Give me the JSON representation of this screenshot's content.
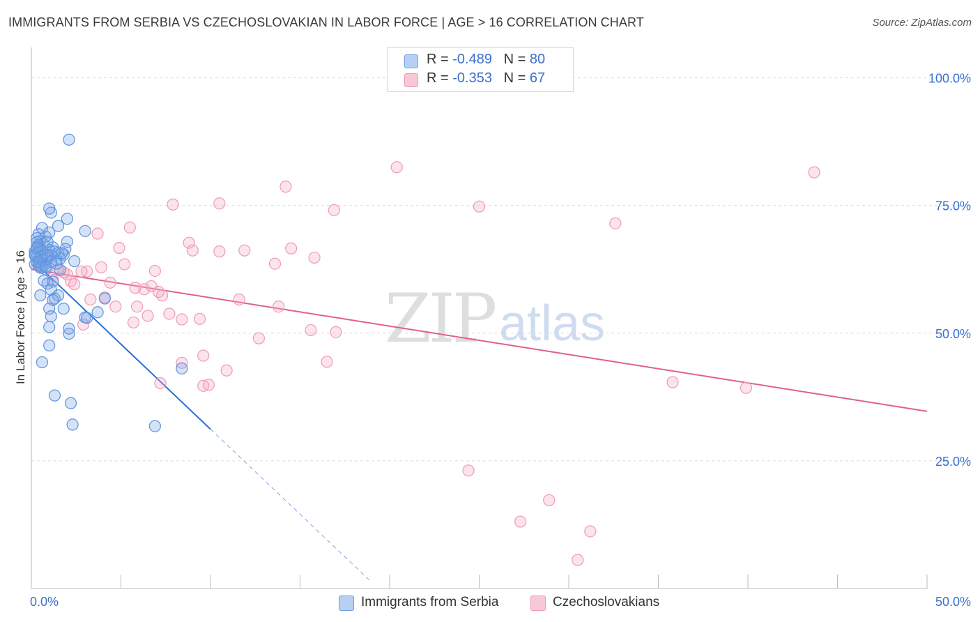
{
  "title": "IMMIGRANTS FROM SERBIA VS CZECHOSLOVAKIAN IN LABOR FORCE | AGE > 16 CORRELATION CHART",
  "source": "Source: ZipAtlas.com",
  "watermark": {
    "zip": "ZIP",
    "atlas": "atlas"
  },
  "legend": {
    "rows": [
      {
        "r_label": "R = ",
        "r_value": "-0.489",
        "n_label": "N = ",
        "n_value": "80"
      },
      {
        "r_label": "R = ",
        "r_value": "-0.353",
        "n_label": "N = ",
        "n_value": "67"
      }
    ]
  },
  "chart_data": {
    "type": "scatter",
    "title": "IMMIGRANTS FROM SERBIA VS CZECHOSLOVAKIAN IN LABOR FORCE | AGE > 16 CORRELATION CHART",
    "xlabel": "",
    "ylabel": "In Labor Force | Age > 16",
    "xlim": [
      0,
      50
    ],
    "ylim": [
      0,
      105
    ],
    "x_tick_labels": [
      "0.0%",
      "50.0%"
    ],
    "y_ticks": [
      25,
      50,
      75,
      100
    ],
    "y_tick_labels": [
      "25.0%",
      "50.0%",
      "75.0%",
      "100.0%"
    ],
    "grid": true,
    "legend_position": "top-center",
    "colors": {
      "serbia": "#5b93e0",
      "serbia_line": "#2a6fd0",
      "czech": "#f08aaa",
      "czech_line": "#e0608c",
      "tick_text": "#3a6fd0"
    },
    "series": [
      {
        "name": "Immigrants from Serbia",
        "color": "#5b93e0",
        "trend": {
          "x0": 0,
          "y0": 64.5,
          "x1": 10,
          "y1": 31.2,
          "dashed_to_x": 18.9
        },
        "points": [
          [
            0.2,
            65.5
          ],
          [
            0.3,
            66.5
          ],
          [
            0.4,
            67.2
          ],
          [
            0.3,
            64.8
          ],
          [
            0.5,
            63.8
          ],
          [
            0.6,
            65.8
          ],
          [
            0.2,
            63.5
          ],
          [
            0.8,
            64.2
          ],
          [
            0.4,
            66.9
          ],
          [
            0.7,
            67.4
          ],
          [
            0.5,
            68.1
          ],
          [
            1.0,
            66.3
          ],
          [
            0.9,
            64.9
          ],
          [
            0.6,
            62.9
          ],
          [
            1.1,
            65.3
          ],
          [
            0.3,
            68.6
          ],
          [
            0.8,
            68.9
          ],
          [
            1.4,
            64.3
          ],
          [
            1.2,
            66.8
          ],
          [
            1.5,
            65.7
          ],
          [
            0.4,
            69.4
          ],
          [
            0.6,
            70.6
          ],
          [
            1.0,
            69.7
          ],
          [
            1.1,
            73.6
          ],
          [
            1.0,
            74.4
          ],
          [
            1.5,
            71.0
          ],
          [
            2.0,
            72.4
          ],
          [
            2.0,
            67.9
          ],
          [
            1.9,
            66.5
          ],
          [
            1.8,
            65.4
          ],
          [
            2.4,
            64.1
          ],
          [
            1.6,
            64.6
          ],
          [
            0.3,
            64.0
          ],
          [
            0.5,
            65.0
          ],
          [
            0.7,
            63.3
          ],
          [
            0.2,
            66.0
          ],
          [
            0.9,
            67.9
          ],
          [
            0.5,
            66.3
          ],
          [
            0.3,
            67.8
          ],
          [
            1.3,
            66.0
          ],
          [
            1.2,
            60.1
          ],
          [
            0.9,
            59.7
          ],
          [
            1.1,
            58.5
          ],
          [
            1.3,
            56.8
          ],
          [
            1.5,
            57.4
          ],
          [
            1.2,
            56.5
          ],
          [
            1.8,
            54.8
          ],
          [
            0.5,
            57.4
          ],
          [
            1.0,
            54.8
          ],
          [
            1.1,
            53.3
          ],
          [
            1.0,
            51.2
          ],
          [
            2.1,
            50.9
          ],
          [
            2.1,
            49.9
          ],
          [
            1.0,
            47.6
          ],
          [
            0.6,
            44.3
          ],
          [
            1.3,
            37.8
          ],
          [
            2.2,
            36.3
          ],
          [
            2.3,
            32.1
          ],
          [
            3.0,
            53.1
          ],
          [
            3.1,
            53.0
          ],
          [
            3.7,
            54.1
          ],
          [
            4.1,
            56.8
          ],
          [
            3.0,
            70.0
          ],
          [
            0.8,
            62.5
          ],
          [
            1.6,
            62.4
          ],
          [
            0.7,
            60.3
          ],
          [
            2.1,
            87.9
          ],
          [
            8.4,
            43.1
          ],
          [
            6.9,
            31.8
          ],
          [
            0.4,
            63.2
          ],
          [
            0.6,
            64.4
          ],
          [
            1.4,
            63.6
          ],
          [
            0.2,
            65.2
          ],
          [
            0.4,
            63.9
          ],
          [
            0.3,
            66.8
          ],
          [
            0.9,
            65.3
          ],
          [
            1.7,
            65.7
          ],
          [
            0.5,
            62.8
          ],
          [
            1.1,
            64.0
          ],
          [
            0.8,
            63.0
          ]
        ]
      },
      {
        "name": "Czechoslovakians",
        "color": "#f08aaa",
        "trend": {
          "x0": 0,
          "y0": 62.5,
          "x1": 50,
          "y1": 34.7
        },
        "points": [
          [
            0.6,
            62.8
          ],
          [
            0.9,
            64.5
          ],
          [
            1.5,
            62.4
          ],
          [
            2.0,
            61.5
          ],
          [
            2.2,
            60.2
          ],
          [
            2.4,
            59.6
          ],
          [
            3.1,
            62.1
          ],
          [
            3.3,
            56.6
          ],
          [
            2.9,
            51.7
          ],
          [
            3.7,
            69.5
          ],
          [
            3.9,
            62.9
          ],
          [
            4.4,
            59.9
          ],
          [
            4.7,
            55.2
          ],
          [
            4.9,
            66.7
          ],
          [
            5.2,
            63.5
          ],
          [
            5.5,
            70.7
          ],
          [
            5.7,
            52.1
          ],
          [
            5.9,
            55.2
          ],
          [
            6.3,
            58.6
          ],
          [
            6.5,
            53.4
          ],
          [
            6.7,
            59.2
          ],
          [
            6.9,
            62.2
          ],
          [
            7.1,
            58.1
          ],
          [
            7.3,
            57.4
          ],
          [
            7.7,
            53.8
          ],
          [
            7.9,
            75.2
          ],
          [
            8.4,
            52.7
          ],
          [
            8.4,
            44.2
          ],
          [
            8.8,
            67.7
          ],
          [
            9.0,
            66.2
          ],
          [
            9.4,
            52.8
          ],
          [
            9.6,
            45.6
          ],
          [
            9.6,
            39.7
          ],
          [
            9.9,
            39.9
          ],
          [
            10.5,
            75.4
          ],
          [
            10.5,
            66.0
          ],
          [
            10.9,
            42.7
          ],
          [
            11.6,
            56.6
          ],
          [
            11.9,
            66.2
          ],
          [
            12.7,
            49.0
          ],
          [
            13.6,
            63.6
          ],
          [
            13.8,
            55.2
          ],
          [
            14.2,
            78.7
          ],
          [
            14.5,
            66.6
          ],
          [
            15.6,
            50.6
          ],
          [
            15.8,
            64.8
          ],
          [
            16.5,
            44.4
          ],
          [
            16.9,
            74.1
          ],
          [
            17.0,
            50.2
          ],
          [
            20.4,
            82.5
          ],
          [
            24.4,
            23.1
          ],
          [
            25.0,
            74.8
          ],
          [
            27.3,
            13.1
          ],
          [
            28.9,
            17.3
          ],
          [
            30.5,
            5.6
          ],
          [
            31.2,
            11.2
          ],
          [
            32.6,
            71.5
          ],
          [
            35.8,
            40.4
          ],
          [
            39.9,
            39.3
          ],
          [
            43.7,
            81.5
          ],
          [
            5.8,
            58.9
          ],
          [
            7.2,
            40.2
          ],
          [
            4.1,
            57.0
          ],
          [
            1.2,
            60.4
          ],
          [
            1.8,
            61.9
          ],
          [
            2.8,
            62.1
          ],
          [
            0.4,
            63.6
          ]
        ]
      }
    ]
  },
  "bottom_legend": {
    "serbia_label": "Immigrants from Serbia",
    "czech_label": "Czechoslovakians"
  }
}
